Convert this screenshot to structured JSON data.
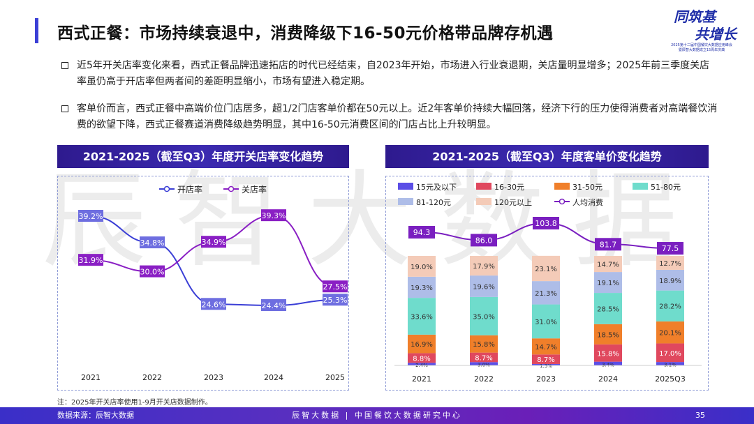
{
  "header": {
    "title": "西式正餐：市场持续衰退中，消费降级下16-50元价格带品牌存机遇",
    "logo": {
      "line1": "同筑基",
      "line2": "共增长",
      "line3": "2025第十二届中国餐饮大数据应用峰会",
      "line4": "暨辰智大数据成立15周年庆典"
    }
  },
  "bullets": [
    "近5年开关店率变化来看，西式正餐品牌迅速拓店的时代已经结束，自2023年开始，市场进入行业衰退期，关店量明显增多；2025年前三季度关店率虽仍高于开店率但两者间的差距明显缩小，市场有望进入稳定期。",
    "客单价而言，西式正餐中高端价位门店居多，超1/2门店客单价都在50元以上。近2年客单价持续大幅回落，经济下行的压力使得消费者对高端餐饮消费的欲望下降，西式正餐赛道消费降级趋势明显，其中16-50元消费区间的门店占比上升较明显。"
  ],
  "watermark": "辰智大数据",
  "chart_data": [
    {
      "type": "line",
      "title": "2021-2025（截至Q3）年度开关店率变化趋势",
      "categories": [
        "2021",
        "2022",
        "2023",
        "2024",
        "2025"
      ],
      "series": [
        {
          "name": "开店率",
          "color": "#3b3fd6",
          "values": [
            39.2,
            34.8,
            24.6,
            24.4,
            25.3
          ],
          "labels": [
            "39.2%",
            "34.8%",
            "24.6%",
            "24.4%",
            "25.3%"
          ]
        },
        {
          "name": "关店率",
          "color": "#8a1fc4",
          "values": [
            31.9,
            30.0,
            34.9,
            39.3,
            27.5
          ],
          "labels": [
            "31.9%",
            "30.0%",
            "34.9%",
            "39.3%",
            "27.5%"
          ]
        }
      ],
      "legend": "top",
      "grid": false
    },
    {
      "type": "bar",
      "stacked": true,
      "title": "2021-2025（截至Q3）年度客单价变化趋势",
      "categories": [
        "2021",
        "2022",
        "2023",
        "2024",
        "2025Q3"
      ],
      "series": [
        {
          "name": "15元及以下",
          "color": "#5b4ee6",
          "values": [
            2.4,
            3.0,
            1.3,
            3.4,
            3.1
          ]
        },
        {
          "name": "16-30元",
          "color": "#e0485e",
          "values": [
            8.8,
            8.7,
            8.7,
            15.8,
            17.0
          ]
        },
        {
          "name": "31-50元",
          "color": "#f07f2a",
          "values": [
            16.9,
            15.8,
            14.7,
            18.5,
            20.1
          ]
        },
        {
          "name": "51-80元",
          "color": "#6fdccc",
          "values": [
            33.6,
            35.0,
            31.0,
            28.5,
            28.2
          ]
        },
        {
          "name": "81-120元",
          "color": "#aebde8",
          "values": [
            19.3,
            19.6,
            21.3,
            19.1,
            18.9
          ]
        },
        {
          "name": "120元以上",
          "color": "#f4cbb8",
          "values": [
            19.0,
            17.9,
            23.1,
            14.7,
            12.7
          ]
        }
      ],
      "line": {
        "name": "人均消费",
        "color": "#7a1fc0",
        "values": [
          94.3,
          86.0,
          103.8,
          81.7,
          77.5
        ]
      },
      "legend": "top",
      "grid": false
    }
  ],
  "footnote": "注：2025年开关店率使用1-9月开关店数据制作。",
  "footer": {
    "source": "数据来源：辰智大数据",
    "center": "辰智大数据 | 中国餐饮大数据研究中心",
    "page": "35"
  }
}
